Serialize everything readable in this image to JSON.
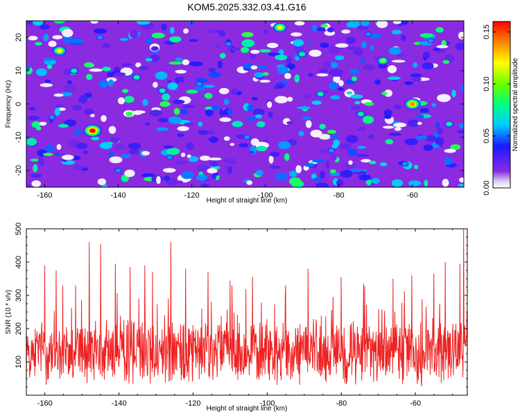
{
  "figure_title": "KOM5.2025.332.03.41.G16",
  "chart_data": [
    {
      "type": "heatmap",
      "title": "KOM5.2025.332.03.41.G16",
      "xlabel": "Height of straight line (km)",
      "ylabel": "Frequency (Hz)",
      "xlim": [
        -165,
        -46
      ],
      "ylim": [
        -25,
        25
      ],
      "xticks": [
        -160,
        -140,
        -120,
        -100,
        -80,
        -60
      ],
      "yticks": [
        -20,
        -10,
        0,
        10,
        20
      ],
      "colorbar": {
        "label": "Normalized spectral amplitude",
        "range": [
          0,
          0.16
        ],
        "ticks": [
          "0.00",
          "0.05",
          "0.10",
          "0.15"
        ]
      },
      "hotspots": [
        {
          "x": -147,
          "y": -8,
          "value": 0.16
        },
        {
          "x": -156,
          "y": 16,
          "value": 0.12
        },
        {
          "x": -96,
          "y": 23,
          "value": 0.13
        },
        {
          "x": -60,
          "y": 0,
          "value": 0.15
        },
        {
          "x": -152,
          "y": 10,
          "value": 0.09
        },
        {
          "x": -135,
          "y": 8,
          "value": 0.09
        },
        {
          "x": -128,
          "y": 4,
          "value": 0.08
        },
        {
          "x": -85,
          "y": 3,
          "value": 0.09
        },
        {
          "x": -74,
          "y": -3,
          "value": 0.09
        },
        {
          "x": -68,
          "y": 13,
          "value": 0.1
        },
        {
          "x": -50,
          "y": -6,
          "value": 0.08
        },
        {
          "x": -118,
          "y": 6,
          "value": 0.07
        },
        {
          "x": -105,
          "y": -10,
          "value": 0.06
        },
        {
          "x": -90,
          "y": 15,
          "value": 0.08
        },
        {
          "x": -140,
          "y": -20,
          "value": 0.07
        },
        {
          "x": -62,
          "y": -18,
          "value": 0.07
        },
        {
          "x": -110,
          "y": 18,
          "value": 0.06
        },
        {
          "x": -82,
          "y": -14,
          "value": 0.06
        },
        {
          "x": -158,
          "y": -4,
          "value": 0.07
        },
        {
          "x": -126,
          "y": -16,
          "value": 0.06
        },
        {
          "x": -97,
          "y": 5,
          "value": 0.05
        },
        {
          "x": -55,
          "y": 19,
          "value": 0.07
        },
        {
          "x": -72,
          "y": 21,
          "value": 0.06
        },
        {
          "x": -145,
          "y": 20,
          "value": 0.07
        },
        {
          "x": -132,
          "y": -6,
          "value": 0.05
        },
        {
          "x": -114,
          "y": -22,
          "value": 0.05
        }
      ]
    },
    {
      "type": "line",
      "xlabel": "Height of straight line (km)",
      "ylabel": "SNR (10 * v/v)",
      "xlim": [
        -165,
        -46
      ],
      "ylim": [
        0,
        500
      ],
      "xticks": [
        -160,
        -140,
        -120,
        -100,
        -80,
        -60
      ],
      "yticks": [
        100,
        200,
        300,
        400,
        500
      ],
      "series": [
        {
          "name": "SNR",
          "color": "#ee2222",
          "n_points": 1200,
          "baseline": 130,
          "range": [
            20,
            500
          ],
          "peaks": [
            {
              "x": -148,
              "y": 460
            },
            {
              "x": -145,
              "y": 455
            },
            {
              "x": -126,
              "y": 460
            },
            {
              "x": -47,
              "y": 500
            },
            {
              "x": -48,
              "y": 395
            },
            {
              "x": -160,
              "y": 390
            },
            {
              "x": -157,
              "y": 375
            },
            {
              "x": -141,
              "y": 395
            },
            {
              "x": -137,
              "y": 385
            },
            {
              "x": -133,
              "y": 390
            },
            {
              "x": -131,
              "y": 370
            },
            {
              "x": -122,
              "y": 380
            },
            {
              "x": -116,
              "y": 370
            },
            {
              "x": -110,
              "y": 345
            },
            {
              "x": -104,
              "y": 355
            },
            {
              "x": -95,
              "y": 330
            },
            {
              "x": -89,
              "y": 380
            },
            {
              "x": -80,
              "y": 355
            },
            {
              "x": -74,
              "y": 335
            },
            {
              "x": -66,
              "y": 350
            },
            {
              "x": -61,
              "y": 360
            },
            {
              "x": -55,
              "y": 365
            },
            {
              "x": -52,
              "y": 400
            }
          ]
        }
      ]
    }
  ]
}
